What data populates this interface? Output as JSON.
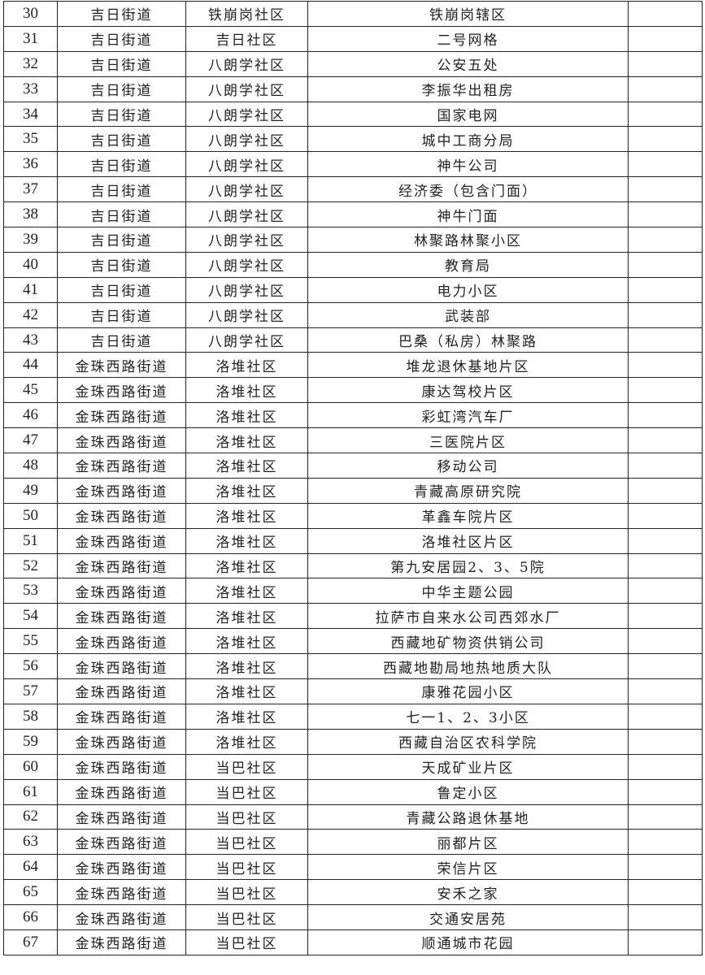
{
  "rows": [
    [
      "30",
      "吉日街道",
      "铁崩岗社区",
      "铁崩岗辖区",
      ""
    ],
    [
      "31",
      "吉日街道",
      "吉日社区",
      "二号网格",
      ""
    ],
    [
      "32",
      "吉日街道",
      "八朗学社区",
      "公安五处",
      ""
    ],
    [
      "33",
      "吉日街道",
      "八朗学社区",
      "李振华出租房",
      ""
    ],
    [
      "34",
      "吉日街道",
      "八朗学社区",
      "国家电网",
      ""
    ],
    [
      "35",
      "吉日街道",
      "八朗学社区",
      "城中工商分局",
      ""
    ],
    [
      "36",
      "吉日街道",
      "八朗学社区",
      "神牛公司",
      ""
    ],
    [
      "37",
      "吉日街道",
      "八朗学社区",
      "经济委（包含门面）",
      ""
    ],
    [
      "38",
      "吉日街道",
      "八朗学社区",
      "神牛门面",
      ""
    ],
    [
      "39",
      "吉日街道",
      "八朗学社区",
      "林聚路林聚小区",
      ""
    ],
    [
      "40",
      "吉日街道",
      "八朗学社区",
      "教育局",
      ""
    ],
    [
      "41",
      "吉日街道",
      "八朗学社区",
      "电力小区",
      ""
    ],
    [
      "42",
      "吉日街道",
      "八朗学社区",
      "武装部",
      ""
    ],
    [
      "43",
      "吉日街道",
      "八朗学社区",
      "巴桑（私房）林聚路",
      ""
    ],
    [
      "44",
      "金珠西路街道",
      "洛堆社区",
      "堆龙退休基地片区",
      ""
    ],
    [
      "45",
      "金珠西路街道",
      "洛堆社区",
      "康达驾校片区",
      ""
    ],
    [
      "46",
      "金珠西路街道",
      "洛堆社区",
      "彩虹湾汽车厂",
      ""
    ],
    [
      "47",
      "金珠西路街道",
      "洛堆社区",
      "三医院片区",
      ""
    ],
    [
      "48",
      "金珠西路街道",
      "洛堆社区",
      "移动公司",
      ""
    ],
    [
      "49",
      "金珠西路街道",
      "洛堆社区",
      "青藏高原研究院",
      ""
    ],
    [
      "50",
      "金珠西路街道",
      "洛堆社区",
      "革鑫车院片区",
      ""
    ],
    [
      "51",
      "金珠西路街道",
      "洛堆社区",
      "洛堆社区片区",
      ""
    ],
    [
      "52",
      "金珠西路街道",
      "洛堆社区",
      "第九安居园2、3、5院",
      ""
    ],
    [
      "53",
      "金珠西路街道",
      "洛堆社区",
      "中华主题公园",
      ""
    ],
    [
      "54",
      "金珠西路街道",
      "洛堆社区",
      "拉萨市自来水公司西郊水厂",
      ""
    ],
    [
      "55",
      "金珠西路街道",
      "洛堆社区",
      "西藏地矿物资供销公司",
      ""
    ],
    [
      "56",
      "金珠西路街道",
      "洛堆社区",
      "西藏地勘局地热地质大队",
      ""
    ],
    [
      "57",
      "金珠西路街道",
      "洛堆社区",
      "康雅花园小区",
      ""
    ],
    [
      "58",
      "金珠西路街道",
      "洛堆社区",
      "七一1、2、3小区",
      ""
    ],
    [
      "59",
      "金珠西路街道",
      "洛堆社区",
      "西藏自治区农科学院",
      ""
    ],
    [
      "60",
      "金珠西路街道",
      "当巴社区",
      "天成矿业片区",
      ""
    ],
    [
      "61",
      "金珠西路街道",
      "当巴社区",
      "鲁定小区",
      ""
    ],
    [
      "62",
      "金珠西路街道",
      "当巴社区",
      "青藏公路退休基地",
      ""
    ],
    [
      "63",
      "金珠西路街道",
      "当巴社区",
      "丽都片区",
      ""
    ],
    [
      "64",
      "金珠西路街道",
      "当巴社区",
      "荣信片区",
      ""
    ],
    [
      "65",
      "金珠西路街道",
      "当巴社区",
      "安禾之家",
      ""
    ],
    [
      "66",
      "金珠西路街道",
      "当巴社区",
      "交通安居苑",
      ""
    ],
    [
      "67",
      "金珠西路街道",
      "当巴社区",
      "顺通城市花园",
      ""
    ]
  ]
}
